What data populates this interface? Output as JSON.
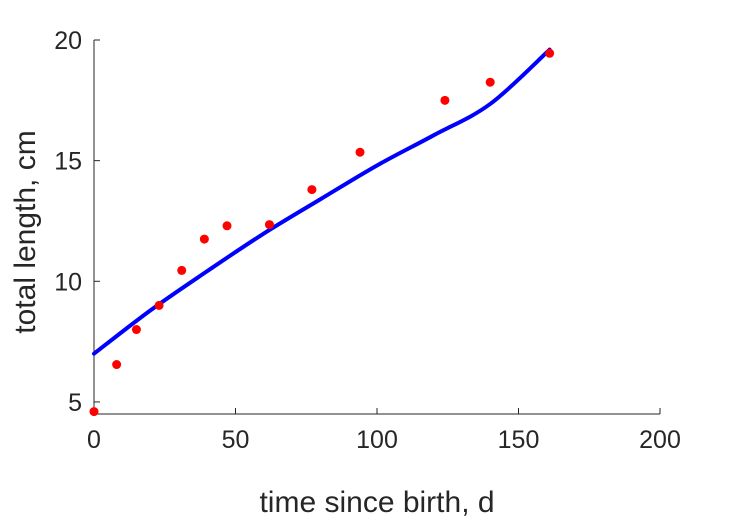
{
  "chart_data": {
    "type": "scatter",
    "xlabel": "time since birth, d",
    "ylabel": "total length, cm",
    "xlim": [
      0,
      200
    ],
    "ylim": [
      4.5,
      20
    ],
    "x_ticks": [
      "0",
      "50",
      "100",
      "150",
      "200"
    ],
    "y_ticks": [
      "5",
      "10",
      "15",
      "20"
    ],
    "x_tick_values": [
      0,
      50,
      100,
      150,
      200
    ],
    "y_tick_values": [
      5,
      10,
      15,
      20
    ],
    "grid": false,
    "series": [
      {
        "kind": "points",
        "color": "#ff0000",
        "x": [
          0,
          8,
          15,
          23,
          31,
          39,
          47,
          62,
          77,
          94,
          124,
          140,
          161
        ],
        "y": [
          4.6,
          6.55,
          8.0,
          9.0,
          10.45,
          11.75,
          12.3,
          12.35,
          13.8,
          15.35,
          17.5,
          18.25,
          19.45
        ]
      },
      {
        "kind": "line",
        "color": "#0000ff",
        "x": [
          0,
          20,
          40,
          60,
          80,
          100,
          120,
          140,
          161
        ],
        "y": [
          7.0,
          8.8,
          10.42,
          11.98,
          13.4,
          14.8,
          16.05,
          17.35,
          19.6
        ]
      }
    ]
  }
}
